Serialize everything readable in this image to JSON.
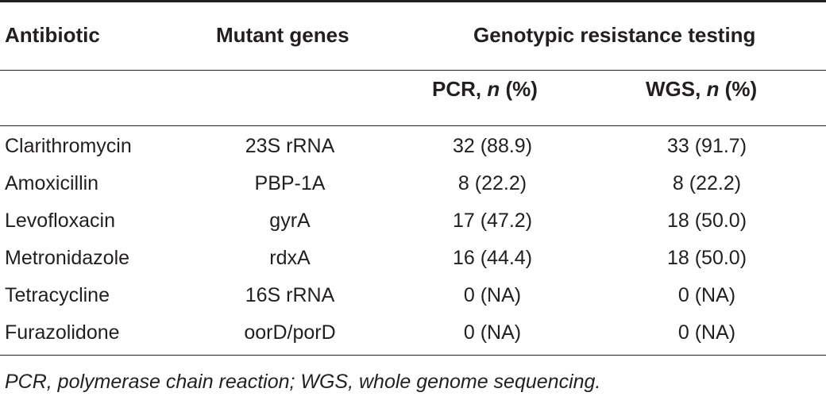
{
  "table": {
    "headers": {
      "antibiotic": "Antibiotic",
      "mutant_genes": "Mutant genes",
      "genotypic": "Genotypic resistance testing",
      "pcr_prefix": "PCR, ",
      "pcr_n": "n",
      "pcr_suffix": " (%)",
      "wgs_prefix": "WGS, ",
      "wgs_n": "n",
      "wgs_suffix": " (%)"
    },
    "rows": [
      {
        "antibiotic": "Clarithromycin",
        "gene": "23S rRNA",
        "pcr": "32 (88.9)",
        "wgs": "33 (91.7)"
      },
      {
        "antibiotic": "Amoxicillin",
        "gene": "PBP-1A",
        "pcr": "8 (22.2)",
        "wgs": "8 (22.2)"
      },
      {
        "antibiotic": "Levofloxacin",
        "gene": "gyrA",
        "pcr": "17 (47.2)",
        "wgs": "18 (50.0)"
      },
      {
        "antibiotic": "Metronidazole",
        "gene": "rdxA",
        "pcr": "16 (44.4)",
        "wgs": "18 (50.0)"
      },
      {
        "antibiotic": "Tetracycline",
        "gene": "16S rRNA",
        "pcr": "0 (NA)",
        "wgs": "0 (NA)"
      },
      {
        "antibiotic": "Furazolidone",
        "gene": "oorD/porD",
        "pcr": "0 (NA)",
        "wgs": "0 (NA)"
      }
    ],
    "footnote": "PCR, polymerase chain reaction; WGS, whole genome sequencing."
  }
}
